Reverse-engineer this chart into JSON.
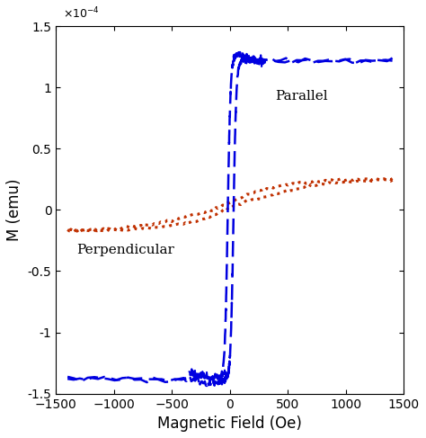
{
  "title": "",
  "xlabel": "Magnetic Field (Oe)",
  "ylabel": "M (emu)",
  "xlim": [
    -1500,
    1500
  ],
  "ylim": [
    -0.00015,
    0.00015
  ],
  "xticks": [
    -1500,
    -1000,
    -500,
    0,
    500,
    1000,
    1500
  ],
  "ytick_labels": [
    "-1.5",
    "-1",
    "-0.5",
    "0",
    "0.5",
    "1",
    "1.5"
  ],
  "yticks": [
    -0.00015,
    -0.0001,
    -5e-05,
    0.0,
    5e-05,
    0.0001,
    0.00015
  ],
  "parallel_color": "#0000e0",
  "perp_color": "#c03000",
  "label_parallel": "Parallel",
  "label_perp": "Perpendicular",
  "figsize": [
    4.74,
    4.87
  ],
  "dpi": 100
}
